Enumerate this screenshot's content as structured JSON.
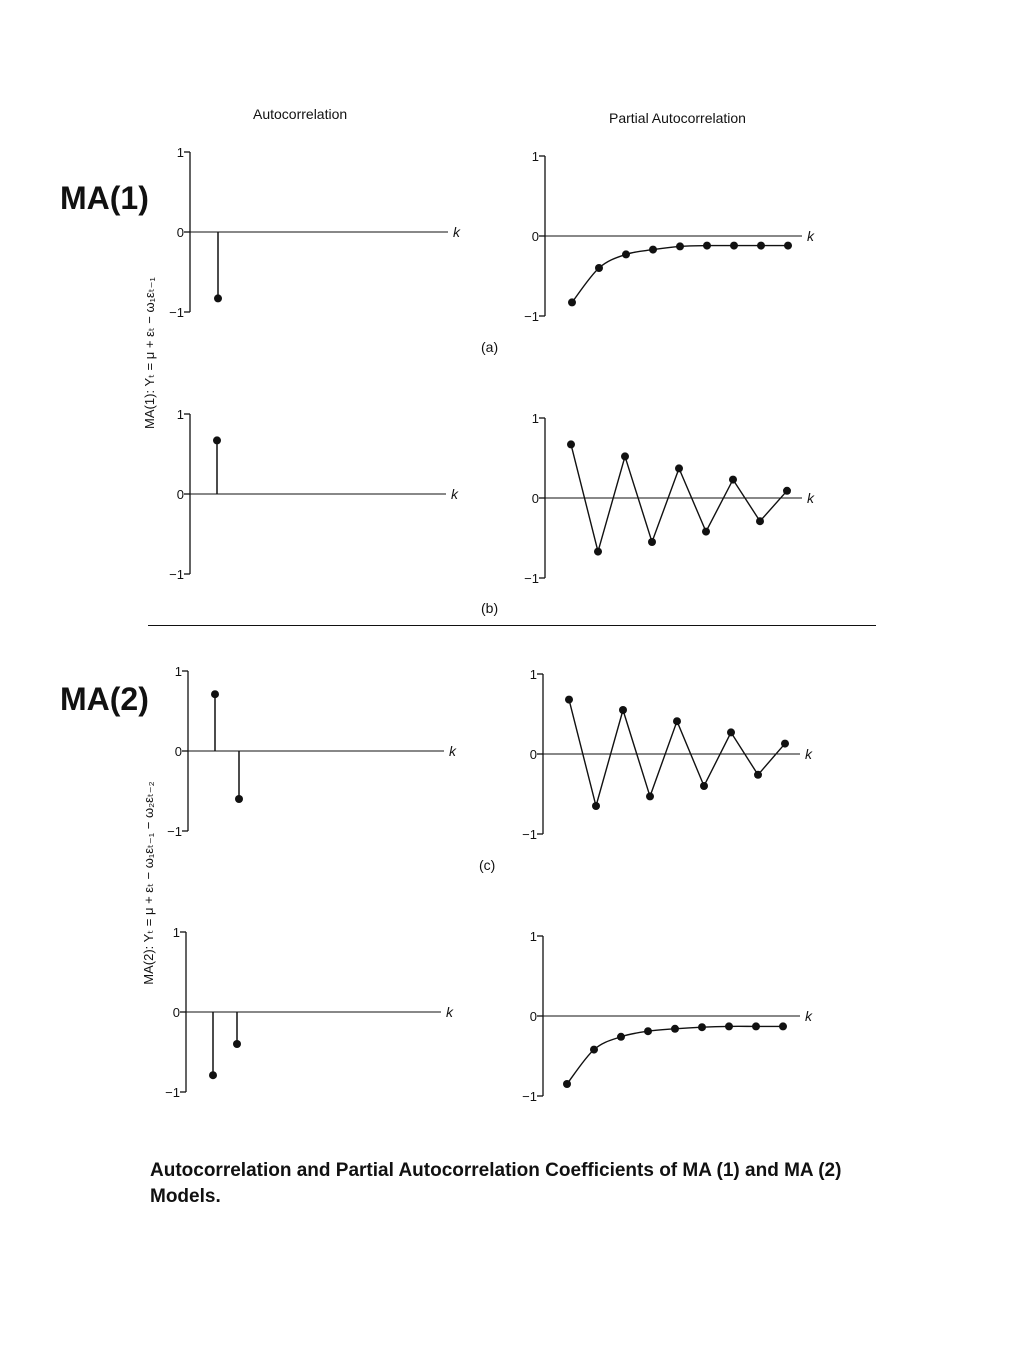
{
  "headers": {
    "left": "Autocorrelation",
    "right": "Partial Autocorrelation"
  },
  "section_labels": {
    "ma1": "MA(1)",
    "ma2": "MA(2)"
  },
  "side_equations": {
    "ma1": "MA(1): Yₜ = μ + εₜ − ω₁εₜ₋₁",
    "ma2": "MA(2): Yₜ = μ + εₜ − ω₁εₜ₋₁ − ω₂εₜ₋₂"
  },
  "panel_labels": {
    "a": "(a)",
    "b": "(b)",
    "c": "(c)"
  },
  "caption": "Autocorrelation and Partial Autocorrelation Coefficients of MA (1) and MA (2) Models.",
  "chart_data": [
    {
      "id": "a-acf",
      "type": "line",
      "style": "stem",
      "xlabel": "k",
      "ylim": [
        -1,
        1
      ],
      "yticks": [
        "1",
        "0",
        "−1"
      ],
      "x": [
        1
      ],
      "values": [
        -0.83
      ]
    },
    {
      "id": "a-pacf",
      "type": "line",
      "style": "curve",
      "xlabel": "k",
      "ylim": [
        -1,
        1
      ],
      "yticks": [
        "1",
        "0",
        "−1"
      ],
      "x": [
        1,
        2,
        3,
        4,
        5,
        6,
        7,
        8,
        9
      ],
      "values": [
        -0.83,
        -0.4,
        -0.23,
        -0.17,
        -0.13,
        -0.12,
        -0.12,
        -0.12,
        -0.12
      ]
    },
    {
      "id": "b-acf",
      "type": "line",
      "style": "stem",
      "xlabel": "k",
      "ylim": [
        -1,
        1
      ],
      "yticks": [
        "1",
        "0",
        "−1"
      ],
      "x": [
        1
      ],
      "values": [
        0.67
      ]
    },
    {
      "id": "b-pacf",
      "type": "line",
      "style": "zigzag",
      "xlabel": "k",
      "ylim": [
        -1,
        1
      ],
      "yticks": [
        "1",
        "0",
        "−1"
      ],
      "x": [
        1,
        2,
        3,
        4,
        5,
        6,
        7,
        8,
        9
      ],
      "values": [
        0.67,
        -0.67,
        0.52,
        -0.55,
        0.37,
        -0.42,
        0.23,
        -0.29,
        0.09
      ]
    },
    {
      "id": "c-acf",
      "type": "line",
      "style": "stem",
      "xlabel": "k",
      "ylim": [
        -1,
        1
      ],
      "yticks": [
        "1",
        "0",
        "−1"
      ],
      "x": [
        1,
        2
      ],
      "values": [
        0.71,
        -0.6
      ]
    },
    {
      "id": "c-pacf",
      "type": "line",
      "style": "zigzag",
      "xlabel": "k",
      "ylim": [
        -1,
        1
      ],
      "yticks": [
        "1",
        "0",
        "−1"
      ],
      "x": [
        1,
        2,
        3,
        4,
        5,
        6,
        7,
        8,
        9
      ],
      "values": [
        0.68,
        -0.65,
        0.55,
        -0.53,
        0.41,
        -0.4,
        0.27,
        -0.26,
        0.13
      ]
    },
    {
      "id": "d-acf",
      "type": "line",
      "style": "stem",
      "xlabel": "k",
      "ylim": [
        -1,
        1
      ],
      "yticks": [
        "1",
        "0",
        "−1"
      ],
      "x": [
        1,
        2
      ],
      "values": [
        -0.79,
        -0.4
      ]
    },
    {
      "id": "d-pacf",
      "type": "line",
      "style": "curve",
      "xlabel": "k",
      "ylim": [
        -1,
        1
      ],
      "yticks": [
        "1",
        "0",
        "−1"
      ],
      "x": [
        1,
        2,
        3,
        4,
        5,
        6,
        7,
        8,
        9
      ],
      "values": [
        -0.85,
        -0.42,
        -0.26,
        -0.19,
        -0.16,
        -0.14,
        -0.13,
        -0.13,
        -0.13
      ]
    }
  ]
}
